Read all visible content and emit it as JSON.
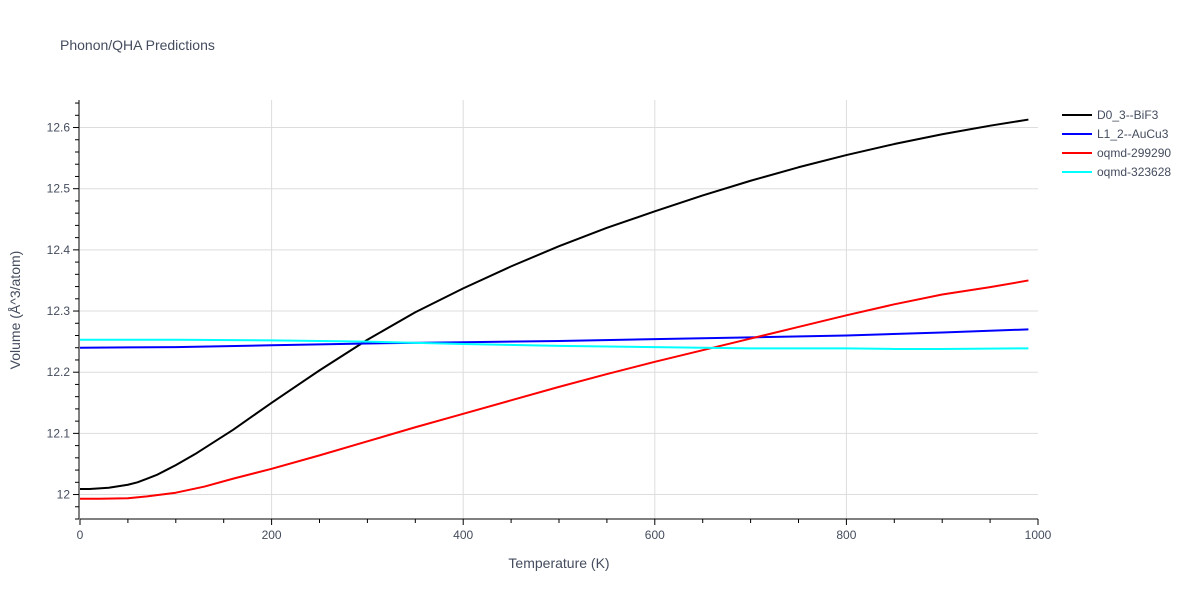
{
  "chart_data": {
    "type": "line",
    "title": "Phonon/QHA Predictions",
    "xlabel": "Temperature (K)",
    "ylabel": "Volume (Å^3/atom)",
    "xlim": [
      0,
      1000
    ],
    "ylim": [
      11.96,
      12.645
    ],
    "x_ticks": [
      0,
      200,
      400,
      600,
      800,
      1000
    ],
    "y_ticks": [
      12,
      12.1,
      12.2,
      12.3,
      12.4,
      12.5,
      12.6
    ],
    "x_tick_labels": [
      "0",
      "200",
      "400",
      "600",
      "800",
      "1000"
    ],
    "y_tick_labels": [
      "12",
      "12.1",
      "12.2",
      "12.3",
      "12.4",
      "12.5",
      "12.6"
    ],
    "grid": true,
    "legend_position": "right",
    "series": [
      {
        "name": "D0_3--BiF3",
        "color": "#000000",
        "x": [
          0,
          10,
          30,
          50,
          60,
          70,
          80,
          90,
          100,
          120,
          140,
          160,
          180,
          200,
          250,
          300,
          350,
          400,
          450,
          500,
          550,
          600,
          650,
          700,
          750,
          800,
          850,
          900,
          950,
          990
        ],
        "y": [
          12.009,
          12.009,
          12.011,
          12.016,
          12.02,
          12.026,
          12.032,
          12.04,
          12.048,
          12.066,
          12.086,
          12.106,
          12.128,
          12.15,
          12.203,
          12.253,
          12.298,
          12.337,
          12.373,
          12.406,
          12.436,
          12.463,
          12.489,
          12.513,
          12.535,
          12.555,
          12.573,
          12.589,
          12.603,
          12.613
        ]
      },
      {
        "name": "L1_2--AuCu3",
        "color": "#0000ff",
        "x": [
          0,
          100,
          200,
          300,
          400,
          500,
          600,
          700,
          800,
          900,
          990
        ],
        "y": [
          12.24,
          12.241,
          12.244,
          12.247,
          12.249,
          12.251,
          12.254,
          12.257,
          12.26,
          12.265,
          12.27
        ]
      },
      {
        "name": "oqmd-299290",
        "color": "#ff0000",
        "x": [
          0,
          20,
          50,
          70,
          100,
          130,
          160,
          200,
          250,
          300,
          350,
          400,
          450,
          500,
          550,
          600,
          650,
          700,
          750,
          800,
          850,
          900,
          950,
          990
        ],
        "y": [
          11.993,
          11.993,
          11.994,
          11.997,
          12.003,
          12.013,
          12.026,
          12.042,
          12.064,
          12.087,
          12.11,
          12.132,
          12.154,
          12.176,
          12.197,
          12.217,
          12.236,
          12.255,
          12.274,
          12.293,
          12.311,
          12.327,
          12.339,
          12.35
        ]
      },
      {
        "name": "oqmd-323628",
        "color": "#00ffff",
        "x": [
          0,
          100,
          200,
          300,
          400,
          500,
          600,
          700,
          800,
          850,
          900,
          990
        ],
        "y": [
          12.253,
          12.253,
          12.252,
          12.25,
          12.246,
          12.243,
          12.241,
          12.239,
          12.239,
          12.238,
          12.238,
          12.239
        ]
      }
    ]
  }
}
